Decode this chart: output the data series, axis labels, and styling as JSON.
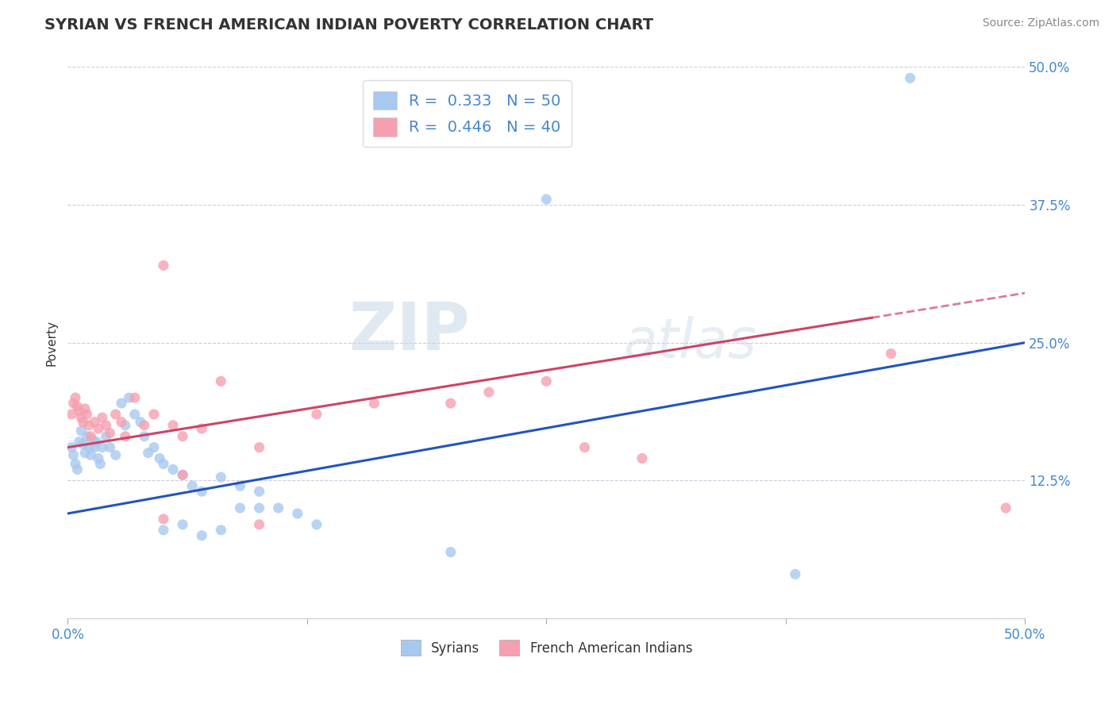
{
  "title": "SYRIAN VS FRENCH AMERICAN INDIAN POVERTY CORRELATION CHART",
  "source": "Source: ZipAtlas.com",
  "ylabel": "Poverty",
  "xlim": [
    0.0,
    0.5
  ],
  "ylim": [
    0.0,
    0.5
  ],
  "xticks": [
    0.0,
    0.125,
    0.25,
    0.375,
    0.5
  ],
  "xticklabels": [
    "0.0%",
    "",
    "",
    "",
    "50.0%"
  ],
  "yticks": [
    0.0,
    0.125,
    0.25,
    0.375,
    0.5
  ],
  "yticklabels": [
    "",
    "12.5%",
    "25.0%",
    "37.5%",
    "50.0%"
  ],
  "syrians_R": 0.333,
  "syrians_N": 50,
  "french_ai_R": 0.446,
  "french_ai_N": 40,
  "syrian_color": "#a8c8f0",
  "french_ai_color": "#f5a0b0",
  "syrian_line_color": "#2255bb",
  "french_ai_line_color": "#cc4466",
  "background_color": "#ffffff",
  "grid_color": "#ccccdd",
  "title_color": "#333333",
  "label_color": "#4488cc",
  "syrian_line_intercept": 0.095,
  "syrian_line_slope": 0.31,
  "french_ai_line_intercept": 0.155,
  "french_ai_line_slope": 0.28,
  "french_ai_line_solid_end": 0.42,
  "syrians_x": [
    0.002,
    0.003,
    0.004,
    0.005,
    0.006,
    0.007,
    0.008,
    0.009,
    0.01,
    0.011,
    0.012,
    0.013,
    0.014,
    0.015,
    0.016,
    0.017,
    0.018,
    0.02,
    0.022,
    0.025,
    0.028,
    0.03,
    0.032,
    0.035,
    0.038,
    0.04,
    0.042,
    0.045,
    0.048,
    0.05,
    0.055,
    0.06,
    0.065,
    0.07,
    0.08,
    0.09,
    0.1,
    0.11,
    0.12,
    0.13,
    0.05,
    0.06,
    0.07,
    0.08,
    0.09,
    0.1,
    0.2,
    0.25,
    0.38,
    0.44
  ],
  "syrians_y": [
    0.155,
    0.148,
    0.14,
    0.135,
    0.16,
    0.17,
    0.158,
    0.15,
    0.165,
    0.155,
    0.148,
    0.162,
    0.155,
    0.16,
    0.145,
    0.14,
    0.155,
    0.165,
    0.155,
    0.148,
    0.195,
    0.175,
    0.2,
    0.185,
    0.178,
    0.165,
    0.15,
    0.155,
    0.145,
    0.14,
    0.135,
    0.13,
    0.12,
    0.115,
    0.128,
    0.12,
    0.115,
    0.1,
    0.095,
    0.085,
    0.08,
    0.085,
    0.075,
    0.08,
    0.1,
    0.1,
    0.06,
    0.38,
    0.04,
    0.49
  ],
  "french_ai_x": [
    0.002,
    0.003,
    0.004,
    0.005,
    0.006,
    0.007,
    0.008,
    0.009,
    0.01,
    0.011,
    0.012,
    0.014,
    0.016,
    0.018,
    0.02,
    0.022,
    0.025,
    0.028,
    0.03,
    0.035,
    0.04,
    0.045,
    0.05,
    0.055,
    0.06,
    0.07,
    0.08,
    0.1,
    0.13,
    0.16,
    0.2,
    0.22,
    0.25,
    0.27,
    0.3,
    0.1,
    0.05,
    0.06,
    0.43,
    0.49
  ],
  "french_ai_y": [
    0.185,
    0.195,
    0.2,
    0.192,
    0.188,
    0.182,
    0.178,
    0.19,
    0.185,
    0.175,
    0.165,
    0.178,
    0.172,
    0.182,
    0.175,
    0.168,
    0.185,
    0.178,
    0.165,
    0.2,
    0.175,
    0.185,
    0.32,
    0.175,
    0.165,
    0.172,
    0.215,
    0.155,
    0.185,
    0.195,
    0.195,
    0.205,
    0.215,
    0.155,
    0.145,
    0.085,
    0.09,
    0.13,
    0.24,
    0.1
  ]
}
